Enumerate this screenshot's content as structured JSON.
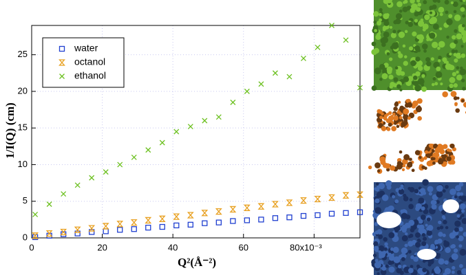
{
  "chart_data": {
    "type": "scatter",
    "xlabel": "Q²(Å⁻²)",
    "ylabel": "1/I(Q) (cm)",
    "x": [
      0.001,
      0.005,
      0.009,
      0.013,
      0.017,
      0.021,
      0.025,
      0.029,
      0.033,
      0.037,
      0.041,
      0.045,
      0.049,
      0.053,
      0.057,
      0.061,
      0.065,
      0.069,
      0.073,
      0.077,
      0.081,
      0.085,
      0.089,
      0.093
    ],
    "series": [
      {
        "name": "water",
        "color": "#1f3fd0",
        "marker": "square",
        "values": [
          0.1,
          0.3,
          0.5,
          0.6,
          0.8,
          0.9,
          1.1,
          1.2,
          1.4,
          1.5,
          1.7,
          1.8,
          2.0,
          2.1,
          2.3,
          2.4,
          2.5,
          2.7,
          2.8,
          3.0,
          3.1,
          3.3,
          3.4,
          3.5
        ]
      },
      {
        "name": "octanol",
        "color": "#e8a020",
        "marker": "hourglass",
        "values": [
          0.3,
          0.6,
          0.8,
          1.1,
          1.3,
          1.6,
          1.9,
          2.1,
          2.4,
          2.6,
          2.9,
          3.1,
          3.4,
          3.6,
          3.9,
          4.1,
          4.3,
          4.6,
          4.8,
          5.1,
          5.3,
          5.5,
          5.8,
          5.9
        ]
      },
      {
        "name": "ethanol",
        "color": "#6cc020",
        "marker": "cross",
        "values": [
          3.2,
          4.6,
          6.0,
          7.2,
          8.2,
          9.0,
          10.0,
          11.0,
          12.0,
          13.0,
          14.5,
          15.2,
          16.0,
          16.5,
          18.5,
          20.0,
          21.0,
          22.5,
          22.0,
          24.5,
          26.0,
          29.0,
          27.0,
          20.5
        ]
      }
    ],
    "xlim": [
      0,
      0.093
    ],
    "ylim": [
      0,
      29
    ],
    "xticks": [
      0,
      {
        "value": 0.02,
        "label": "20"
      },
      {
        "value": 0.04,
        "label": "40"
      },
      {
        "value": 0.06,
        "label": "60"
      },
      {
        "value": 0.08,
        "label": "80x10⁻³"
      }
    ],
    "yticks": [
      0,
      5,
      10,
      15,
      20,
      25
    ],
    "grid": true,
    "legend": "upper left"
  }
}
